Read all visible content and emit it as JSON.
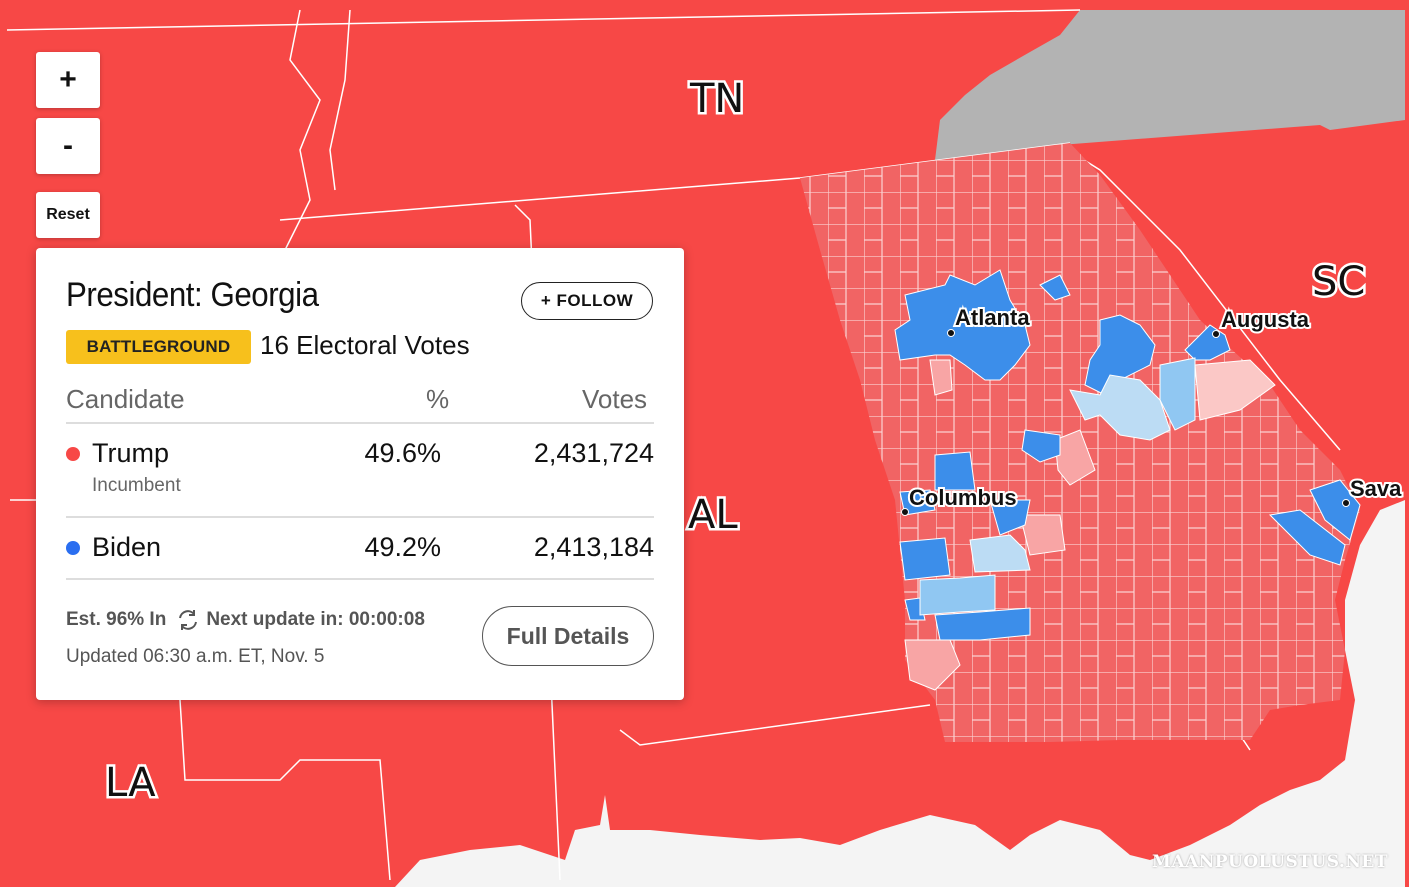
{
  "map": {
    "colors": {
      "state_rep": "#f74846",
      "state_other": "#b3b3b3",
      "water": "#f4f4f4",
      "county_rep": "#f16464",
      "county_rep_light": "#f8a5a5",
      "county_rep_lighter": "#fbc8c6",
      "county_dem": "#3c8eea",
      "county_dem_light": "#90c7f2",
      "county_dem_lighter": "#bcdcf4"
    },
    "state_labels": {
      "tn": "TN",
      "sc": "SC",
      "al": "AL",
      "la": "LA"
    },
    "cities": {
      "atlanta": "Atlanta",
      "augusta": "Augusta",
      "columbus": "Columbus",
      "savannah": "Sava"
    },
    "controls": {
      "zoom_in": "+",
      "zoom_out": "-",
      "reset": "Reset"
    }
  },
  "card": {
    "title": "President: Georgia",
    "follow_label": "+ FOLLOW",
    "badge": "BATTLEGROUND",
    "electoral_votes": "16 Electoral Votes",
    "headers": {
      "candidate": "Candidate",
      "percent": "%",
      "votes": "Votes"
    },
    "candidates": [
      {
        "name": "Trump",
        "status": "Incumbent",
        "percent": "49.6%",
        "votes": "2,431,724",
        "color": "#f74846"
      },
      {
        "name": "Biden",
        "status": "",
        "percent": "49.2%",
        "votes": "2,413,184",
        "color": "#2a6ef0"
      }
    ],
    "estimate": "Est. 96% In",
    "next_update": "Next update in: 00:00:08",
    "updated": "Updated 06:30 a.m. ET, Nov. 5",
    "full_details_label": "Full Details"
  },
  "watermark": "MAANPUOLUSTUS.NET"
}
